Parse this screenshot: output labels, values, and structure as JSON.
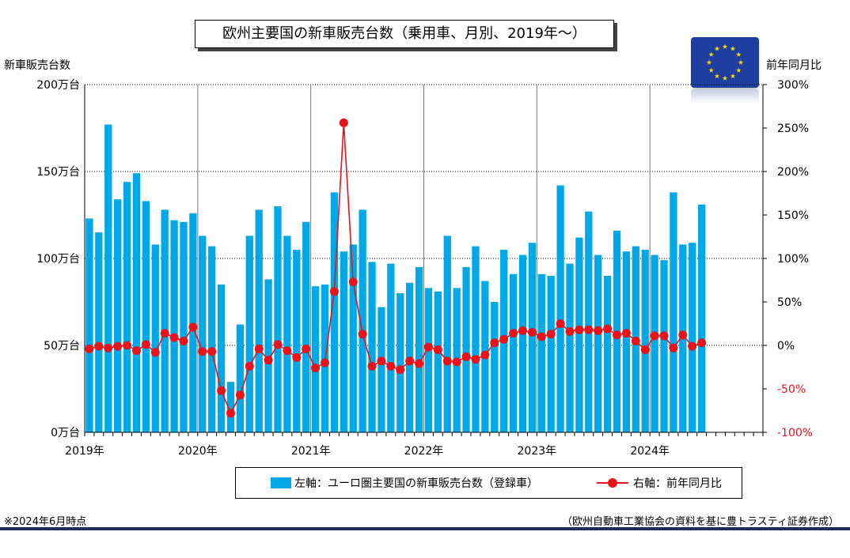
{
  "chart_data": {
    "type": "bar",
    "title": "欧州主要国の新車販売台数（乗用車、月別、2019年～）",
    "left_axis_title": "新車販売台数",
    "right_axis_title": "前年同月比",
    "y_left_ticks": [
      "200万台",
      "150万台",
      "100万台",
      "50万台",
      "0万台"
    ],
    "y_right_ticks": [
      "300%",
      "250%",
      "200%",
      "150%",
      "100%",
      "50%",
      "0%",
      "-50%",
      "-100%"
    ],
    "ylim_left": [
      0,
      200
    ],
    "ylim_right": [
      -100,
      300
    ],
    "x_labels": [
      "2019年",
      "2020年",
      "2021年",
      "2022年",
      "2023年",
      "2024年"
    ],
    "months_on_axis": 72,
    "bar_series": {
      "name": "左軸：ユーロ圏主要国の新車販売台数（登録車）",
      "unit": "万台",
      "color": "#00a8e8",
      "values": [
        123,
        115,
        177,
        134,
        144,
        149,
        133,
        108,
        128,
        122,
        121,
        126,
        113,
        107,
        85,
        29,
        62,
        113,
        128,
        88,
        130,
        113,
        105,
        121,
        84,
        85,
        138,
        104,
        108,
        128,
        98,
        72,
        97,
        80,
        86,
        95,
        83,
        81,
        113,
        83,
        95,
        107,
        87,
        75,
        105,
        91,
        102,
        109,
        91,
        90,
        142,
        97,
        112,
        127,
        102,
        90,
        116,
        104,
        107,
        105,
        102,
        99,
        138,
        108,
        109,
        131
      ]
    },
    "line_series": {
      "name": "右軸：前年同月比",
      "unit": "%",
      "color": "#e8131b",
      "values": [
        -4,
        -1,
        -3,
        -1,
        0,
        -6,
        1,
        -8,
        14,
        9,
        5,
        21,
        -7,
        -7,
        -52,
        -78,
        -57,
        -24,
        -4,
        -17,
        1,
        -6,
        -14,
        -4,
        -26,
        -20,
        62,
        256,
        73,
        13,
        -24,
        -18,
        -24,
        -28,
        -18,
        -21,
        -2,
        -5,
        -18,
        -19,
        -13,
        -16,
        -11,
        3,
        7,
        14,
        17,
        15,
        10,
        13,
        25,
        16,
        18,
        18,
        17,
        19,
        12,
        14,
        5,
        -5,
        11,
        11,
        -3,
        12,
        -1,
        3
      ]
    }
  },
  "legend": {
    "bar_label": "左軸：ユーロ圏主要国の新車販売台数（登録車）",
    "line_label": "右軸：前年同月比"
  },
  "notes": {
    "as_of": "※2024年6月時点",
    "source": "（欧州自動車工業協会の資料を基に豊トラスティ証券作成）"
  },
  "colors": {
    "bar": "#00a8e8",
    "line": "#e8131b",
    "right_axis_text": "#e8131b",
    "flag_blue": "#1e3ea0",
    "flag_star": "#ffd700",
    "footer_rule": "#1c2c5e"
  }
}
